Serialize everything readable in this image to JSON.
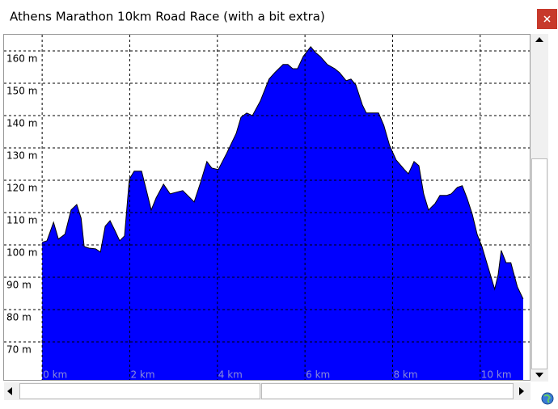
{
  "chart_data": {
    "type": "area",
    "title": "Athens Marathon 10km Road Race (with a bit extra)",
    "color": "#0000ff",
    "grid": true,
    "xlim": [
      -0.87,
      11.13
    ],
    "ylim": [
      58.25,
      165
    ],
    "xticks": [
      {
        "value": 0,
        "label": "0 km"
      },
      {
        "value": 2,
        "label": "2 km"
      },
      {
        "value": 4,
        "label": "4 km"
      },
      {
        "value": 6,
        "label": "6 km"
      },
      {
        "value": 8,
        "label": "8 km"
      },
      {
        "value": 10,
        "label": "10 km"
      }
    ],
    "yticks": [
      {
        "value": 70,
        "label": "70 m"
      },
      {
        "value": 80,
        "label": "80 m"
      },
      {
        "value": 90,
        "label": "90 m"
      },
      {
        "value": 100,
        "label": "100 m"
      },
      {
        "value": 110,
        "label": "110 m"
      },
      {
        "value": 120,
        "label": "120 m"
      },
      {
        "value": 130,
        "label": "130 m"
      },
      {
        "value": 140,
        "label": "140 m"
      },
      {
        "value": 150,
        "label": "150 m"
      },
      {
        "value": 160,
        "label": "160 m"
      }
    ],
    "x": [
      0,
      0.11,
      0.26,
      0.37,
      0.52,
      0.66,
      0.79,
      0.89,
      0.96,
      1.07,
      1.22,
      1.33,
      1.44,
      1.55,
      1.66,
      1.77,
      1.88,
      1.99,
      2.1,
      2.27,
      2.4,
      2.49,
      2.6,
      2.77,
      2.92,
      3.06,
      3.21,
      3.36,
      3.47,
      3.62,
      3.76,
      3.87,
      4.02,
      4.21,
      4.43,
      4.54,
      4.67,
      4.8,
      4.98,
      5.18,
      5.31,
      5.5,
      5.61,
      5.72,
      5.83,
      5.96,
      6.13,
      6.24,
      6.35,
      6.51,
      6.68,
      6.79,
      6.94,
      7.05,
      7.16,
      7.31,
      7.4,
      7.53,
      7.68,
      7.8,
      7.93,
      8.08,
      8.27,
      8.36,
      8.49,
      8.6,
      8.71,
      8.82,
      8.97,
      9.08,
      9.23,
      9.34,
      9.48,
      9.59,
      9.7,
      9.82,
      9.93,
      10.04,
      10.15,
      10.26,
      10.33,
      10.41,
      10.48,
      10.59,
      10.7,
      10.85,
      10.98
    ],
    "values": [
      100.8,
      101.3,
      107,
      101.8,
      103.3,
      110.8,
      112.5,
      108.3,
      99.5,
      99,
      98.8,
      97.8,
      105.8,
      107.5,
      104.5,
      101.3,
      102.8,
      120.3,
      122.8,
      122.8,
      115.8,
      110.8,
      114.5,
      118.8,
      115.8,
      116.3,
      116.8,
      114.8,
      113.3,
      119.5,
      125.8,
      123.8,
      123.3,
      128.3,
      134.5,
      139.5,
      140.8,
      140,
      144.5,
      151.3,
      153.3,
      155.8,
      155.8,
      154.5,
      154.5,
      158.3,
      161.3,
      159.5,
      158.3,
      155.8,
      154.5,
      153.3,
      150.8,
      151.3,
      149.5,
      143.3,
      140.8,
      140.8,
      140.8,
      137,
      130.8,
      126.3,
      123.3,
      122,
      125.8,
      124.5,
      115.8,
      110.8,
      112.8,
      115.3,
      115.3,
      115.8,
      117.8,
      118.3,
      114.5,
      109.5,
      103.3,
      99.5,
      94.5,
      89.5,
      86.3,
      90.8,
      98.3,
      94.5,
      94.5,
      87,
      83.3
    ]
  }
}
